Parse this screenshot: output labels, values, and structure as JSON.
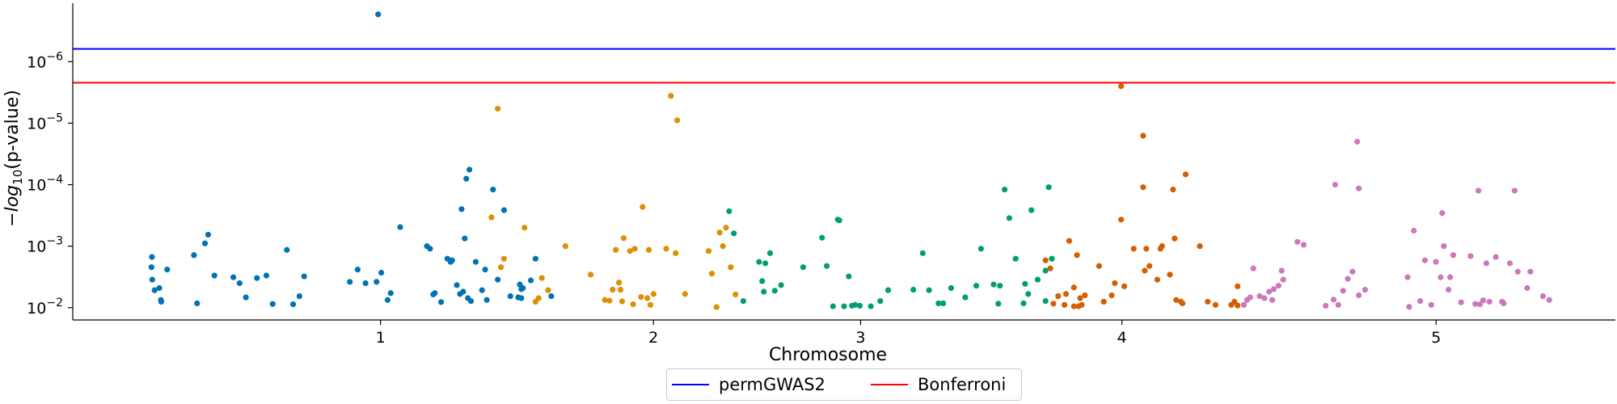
{
  "chart_data": {
    "type": "scatter",
    "title": "",
    "xlabel": "Chromosome",
    "ylabel_parts": [
      "−",
      "log",
      "10",
      "(p-value)"
    ],
    "y_scale": "log (-log10 p-value)",
    "yticks": [
      {
        "value": 0.01,
        "base": "10",
        "exp": "−2"
      },
      {
        "value": 0.001,
        "base": "10",
        "exp": "−3"
      },
      {
        "value": 0.0001,
        "base": "10",
        "exp": "−4"
      },
      {
        "value": 1e-05,
        "base": "10",
        "exp": "−5"
      },
      {
        "value": 1e-06,
        "base": "10",
        "exp": "−6"
      }
    ],
    "xticks": [
      {
        "label": "1",
        "position": 355
      },
      {
        "label": "2",
        "position": 2089
      },
      {
        "label": "3",
        "position": 3405
      },
      {
        "label": "4",
        "position": 5065
      },
      {
        "label": "5",
        "position": 7061
      }
    ],
    "xlim": [
      -1600,
      8200
    ],
    "ylim_exp": [
      -2.2,
      0.75
    ],
    "grid": false,
    "legend_position": "bottom-center",
    "threshold_lines": [
      {
        "name": "permGWAS2",
        "value": 6.2e-07,
        "color": "#0000ff"
      },
      {
        "name": "Bonferroni",
        "value": 2.2e-06,
        "color": "#ff0000"
      }
    ],
    "series": [
      {
        "color": "#0173b2",
        "points": [
          [
            -1100,
            0.0022
          ],
          [
            -1097,
            0.0015
          ],
          [
            -1095,
            0.0035
          ],
          [
            -1080,
            0.0052
          ],
          [
            -1050,
            0.0048
          ],
          [
            -1040,
            0.0075
          ],
          [
            -1038,
            0.008
          ],
          [
            -1000,
            0.0024
          ],
          [
            -830,
            0.0014
          ],
          [
            -810,
            0.0085
          ],
          [
            -760,
            0.0009
          ],
          [
            -740,
            0.00065
          ],
          [
            -700,
            0.003
          ],
          [
            -580,
            0.0032
          ],
          [
            -540,
            0.004
          ],
          [
            -500,
            0.0068
          ],
          [
            -430,
            0.0033
          ],
          [
            -370,
            0.003
          ],
          [
            -330,
            0.0087
          ],
          [
            -240,
            0.00115
          ],
          [
            -200,
            0.0088
          ],
          [
            -160,
            0.0065
          ],
          [
            -130,
            0.0031
          ],
          [
            160,
            0.0038
          ],
          [
            210,
            0.0024
          ],
          [
            260,
            0.004
          ],
          [
            330,
            0.0038
          ],
          [
            340,
            1.7e-07
          ],
          [
            360,
            0.0027
          ],
          [
            400,
            0.0075
          ],
          [
            420,
            0.0058
          ],
          [
            480,
            0.00049
          ],
          [
            650,
            0.001
          ],
          [
            670,
            0.0011
          ],
          [
            690,
            0.0061
          ],
          [
            700,
            0.0058
          ],
          [
            740,
            0.0081
          ],
          [
            780,
            0.0016
          ],
          [
            800,
            0.0018
          ],
          [
            810,
            0.0017
          ],
          [
            840,
            0.0043
          ],
          [
            860,
            0.006
          ],
          [
            870,
            0.00025
          ],
          [
            880,
            0.0055
          ],
          [
            890,
            0.00075
          ],
          [
            900,
            8e-05
          ],
          [
            910,
            0.007
          ],
          [
            920,
            5.7e-05
          ],
          [
            930,
            0.0078
          ],
          [
            960,
            0.0018
          ],
          [
            1000,
            0.0052
          ],
          [
            1020,
            0.0024
          ],
          [
            1030,
            0.0075
          ],
          [
            1070,
            0.00012
          ],
          [
            1100,
            0.0035
          ],
          [
            1140,
            0.00026
          ],
          [
            1180,
            0.0065
          ],
          [
            1230,
            0.0068
          ],
          [
            1240,
            0.0042
          ],
          [
            1250,
            0.005
          ],
          [
            1250,
            0.007
          ],
          [
            1260,
            0.0048
          ],
          [
            1310,
            0.0036
          ],
          [
            1340,
            0.0016
          ],
          [
            1440,
            0.0065
          ]
        ]
      },
      {
        "color": "#de8f05",
        "points": [
          [
            1060,
            0.00034
          ],
          [
            1100,
            5.8e-06
          ],
          [
            1120,
            0.0022
          ],
          [
            1140,
            0.0016
          ],
          [
            1270,
            0.0005
          ],
          [
            1340,
            0.008
          ],
          [
            1360,
            0.007
          ],
          [
            1380,
            0.0033
          ],
          [
            1420,
            0.0052
          ],
          [
            1530,
            0.001
          ],
          [
            1690,
            0.0029
          ],
          [
            1780,
            0.0075
          ],
          [
            1810,
            0.0077
          ],
          [
            1830,
            0.0051
          ],
          [
            1850,
            0.00115
          ],
          [
            1870,
            0.0039
          ],
          [
            1880,
            0.0051
          ],
          [
            1890,
            0.0079
          ],
          [
            1900,
            0.00074
          ],
          [
            1940,
            0.0012
          ],
          [
            1960,
            0.0088
          ],
          [
            1970,
            0.0011
          ],
          [
            2010,
            0.0067
          ],
          [
            2020,
            0.00023
          ],
          [
            2050,
            0.007
          ],
          [
            2060,
            0.00115
          ],
          [
            2070,
            0.009
          ],
          [
            2090,
            0.006
          ],
          [
            2170,
            0.0011
          ],
          [
            2200,
            3.6e-06
          ],
          [
            2230,
            0.0013
          ],
          [
            2240,
            9e-06
          ],
          [
            2290,
            0.006
          ],
          [
            2440,
            0.0012
          ],
          [
            2460,
            0.0028
          ],
          [
            2490,
            0.0098
          ],
          [
            2510,
            0.0006
          ],
          [
            2530,
            0.001
          ],
          [
            2550,
            0.0005
          ],
          [
            2580,
            0.0022
          ],
          [
            2610,
            0.0061
          ]
        ]
      },
      {
        "color": "#029e73",
        "points": [
          [
            2570,
            0.00027
          ],
          [
            2600,
            0.00062
          ],
          [
            2660,
            0.0078
          ],
          [
            2760,
            0.0018
          ],
          [
            2780,
            0.0037
          ],
          [
            2790,
            0.0055
          ],
          [
            2800,
            0.0019
          ],
          [
            2830,
            0.0013
          ],
          [
            2860,
            0.0053
          ],
          [
            2900,
            0.0043
          ],
          [
            3040,
            0.0022
          ],
          [
            3160,
            0.00073
          ],
          [
            3190,
            0.0021
          ],
          [
            3230,
            0.0095
          ],
          [
            3260,
            0.00037
          ],
          [
            3270,
            0.00038
          ],
          [
            3300,
            0.0095
          ],
          [
            3330,
            0.0031
          ],
          [
            3350,
            0.0093
          ],
          [
            3370,
            0.009
          ],
          [
            3400,
            0.0093
          ],
          [
            3470,
            0.0095
          ],
          [
            3530,
            0.0078
          ],
          [
            3580,
            0.0052
          ],
          [
            3740,
            0.0051
          ],
          [
            3800,
            0.0013
          ],
          [
            3840,
            0.0052
          ],
          [
            3900,
            0.0085
          ],
          [
            3930,
            0.0085
          ],
          [
            3980,
            0.0048
          ],
          [
            4070,
            0.0068
          ],
          [
            4140,
            0.0044
          ],
          [
            4170,
            0.0011
          ],
          [
            4250,
            0.0042
          ],
          [
            4280,
            0.0086
          ],
          [
            4290,
            0.0044
          ],
          [
            4320,
            0.00012
          ],
          [
            4350,
            0.00035
          ],
          [
            4390,
            0.0016
          ],
          [
            4440,
            0.0085
          ],
          [
            4450,
            0.0041
          ],
          [
            4470,
            0.006
          ],
          [
            4490,
            0.00026
          ],
          [
            4530,
            0.0035
          ],
          [
            4580,
            0.0078
          ],
          [
            4600,
            0.00011
          ],
          [
            4620,
            0.0016
          ],
          [
            4580,
            0.0025
          ]
        ]
      },
      {
        "color": "#d55e00",
        "points": [
          [
            4580,
            0.0017
          ],
          [
            4610,
            0.0023
          ],
          [
            4630,
            0.0086
          ],
          [
            4660,
            0.0065
          ],
          [
            4700,
            0.009
          ],
          [
            4710,
            0.006
          ],
          [
            4730,
            0.00082
          ],
          [
            4760,
            0.0095
          ],
          [
            4760,
            0.0047
          ],
          [
            4780,
            0.0014
          ],
          [
            4790,
            0.0095
          ],
          [
            4800,
            0.007
          ],
          [
            4810,
            0.009
          ],
          [
            4830,
            0.0063
          ],
          [
            4920,
            0.0021
          ],
          [
            4950,
            0.008
          ],
          [
            5000,
            0.0063
          ],
          [
            5020,
            0.004
          ],
          [
            5060,
            2.5e-06
          ],
          [
            5060,
            0.00037
          ],
          [
            5080,
            0.0045
          ],
          [
            5140,
            0.0011
          ],
          [
            5200,
            1.6e-05
          ],
          [
            5200,
            0.00011
          ],
          [
            5210,
            0.0025
          ],
          [
            5220,
            0.0011
          ],
          [
            5240,
            0.0021
          ],
          [
            5290,
            0.0035
          ],
          [
            5310,
            0.0011
          ],
          [
            5320,
            0.001
          ],
          [
            5370,
            0.0029
          ],
          [
            5390,
            0.00012
          ],
          [
            5400,
            0.00075
          ],
          [
            5410,
            0.0075
          ],
          [
            5440,
            0.008
          ],
          [
            5450,
            0.0085
          ],
          [
            5470,
            6.8e-05
          ],
          [
            5560,
            0.001
          ],
          [
            5610,
            0.008
          ],
          [
            5660,
            0.009
          ],
          [
            5760,
            0.009
          ],
          [
            5780,
            0.008
          ],
          [
            5800,
            0.0092
          ],
          [
            5800,
            0.0045
          ],
          [
            5840,
            0.009
          ]
        ]
      },
      {
        "color": "#cc78bc",
        "points": [
          [
            5840,
            0.009
          ],
          [
            5860,
            0.0075
          ],
          [
            5880,
            0.0068
          ],
          [
            5900,
            0.0023
          ],
          [
            5940,
            0.0065
          ],
          [
            5970,
            0.007
          ],
          [
            6000,
            0.0055
          ],
          [
            6020,
            0.0075
          ],
          [
            6030,
            0.005
          ],
          [
            6060,
            0.0044
          ],
          [
            6080,
            0.0025
          ],
          [
            6090,
            0.0035
          ],
          [
            6180,
            0.00085
          ],
          [
            6220,
            0.00095
          ],
          [
            6360,
            0.0093
          ],
          [
            6410,
            0.0074
          ],
          [
            6420,
            0.0001
          ],
          [
            6440,
            0.009
          ],
          [
            6470,
            0.0053
          ],
          [
            6500,
            0.0034
          ],
          [
            6530,
            0.0026
          ],
          [
            6560,
            2e-05
          ],
          [
            6570,
            0.000115
          ],
          [
            6570,
            0.0063
          ],
          [
            6610,
            0.0051
          ],
          [
            6880,
            0.0032
          ],
          [
            6890,
            0.0097
          ],
          [
            6920,
            0.00056
          ],
          [
            6960,
            0.0078
          ],
          [
            6990,
            0.0017
          ],
          [
            7030,
            0.009
          ],
          [
            7060,
            0.0018
          ],
          [
            7090,
            0.0032
          ],
          [
            7100,
            0.00029
          ],
          [
            7110,
            0.001
          ],
          [
            7140,
            0.0051
          ],
          [
            7150,
            0.0032
          ],
          [
            7170,
            0.0014
          ],
          [
            7220,
            0.0082
          ],
          [
            7280,
            0.00145
          ],
          [
            7310,
            0.0087
          ],
          [
            7330,
            0.000125
          ],
          [
            7340,
            0.0088
          ],
          [
            7360,
            0.0076
          ],
          [
            7380,
            0.0019
          ],
          [
            7400,
            0.008
          ],
          [
            7440,
            0.0015
          ],
          [
            7480,
            0.008
          ],
          [
            7490,
            0.0085
          ],
          [
            7530,
            0.0019
          ],
          [
            7560,
            0.000125
          ],
          [
            7580,
            0.0026
          ],
          [
            7640,
            0.0048
          ],
          [
            7660,
            0.0026
          ],
          [
            7740,
            0.0065
          ],
          [
            7780,
            0.0075
          ]
        ]
      }
    ]
  }
}
